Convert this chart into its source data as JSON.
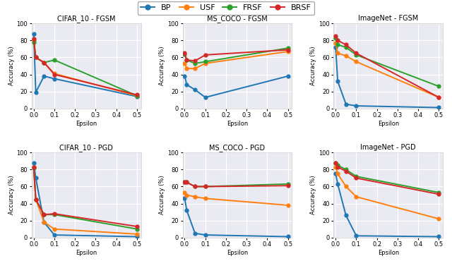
{
  "epsilon": [
    0.0,
    0.01,
    0.05,
    0.1,
    0.5
  ],
  "plots": {
    "CIFAR_10 - FGSM": {
      "BP": [
        88,
        19,
        38,
        35,
        14
      ],
      "USF": [
        80,
        60,
        54,
        41,
        15
      ],
      "FRSF": [
        78,
        60,
        54,
        57,
        15
      ],
      "BRSF": [
        82,
        60,
        54,
        40,
        16
      ]
    },
    "MS_COCO - FGSM": {
      "BP": [
        38,
        28,
        22,
        13,
        38
      ],
      "USF": [
        53,
        47,
        47,
        53,
        67
      ],
      "FRSF": [
        64,
        57,
        53,
        55,
        71
      ],
      "BRSF": [
        65,
        57,
        56,
        63,
        69
      ]
    },
    "ImageNet - FGSM": {
      "BP": [
        72,
        32,
        5,
        3,
        1
      ],
      "USF": [
        77,
        65,
        62,
        55,
        13
      ],
      "FRSF": [
        83,
        75,
        72,
        63,
        26
      ],
      "BRSF": [
        85,
        80,
        75,
        65,
        13
      ]
    },
    "CIFAR_10 - PGD": {
      "BP": [
        88,
        70,
        18,
        3,
        1
      ],
      "USF": [
        83,
        45,
        18,
        10,
        4
      ],
      "FRSF": [
        82,
        45,
        27,
        27,
        10
      ],
      "BRSF": [
        83,
        45,
        27,
        28,
        13
      ]
    },
    "MS_COCO - PGD": {
      "BP": [
        46,
        32,
        5,
        3,
        1
      ],
      "USF": [
        53,
        50,
        48,
        46,
        38
      ],
      "FRSF": [
        65,
        65,
        60,
        60,
        63
      ],
      "BRSF": [
        65,
        65,
        60,
        60,
        61
      ]
    },
    "ImageNet - PGD": {
      "BP": [
        75,
        63,
        26,
        2,
        1
      ],
      "USF": [
        83,
        75,
        60,
        48,
        22
      ],
      "FRSF": [
        88,
        85,
        80,
        72,
        53
      ],
      "BRSF": [
        88,
        83,
        78,
        70,
        51
      ]
    }
  },
  "colors": {
    "BP": "#1f77b4",
    "USF": "#ff7f0e",
    "FRSF": "#2ca02c",
    "BRSF": "#d62728"
  },
  "marker": "o",
  "markersize": 3.5,
  "linewidth": 1.4,
  "ylabel": "Accuracy (%)",
  "xlabel": "Epsilon",
  "ylim": [
    0,
    100
  ],
  "yticks": [
    0,
    20,
    40,
    60,
    80,
    100
  ],
  "xticks": [
    0.0,
    0.1,
    0.2,
    0.3,
    0.4,
    0.5
  ],
  "grid": true,
  "background_color": "#eaeaf2",
  "legend_order": [
    "BP",
    "USF",
    "FRSF",
    "BRSF"
  ]
}
